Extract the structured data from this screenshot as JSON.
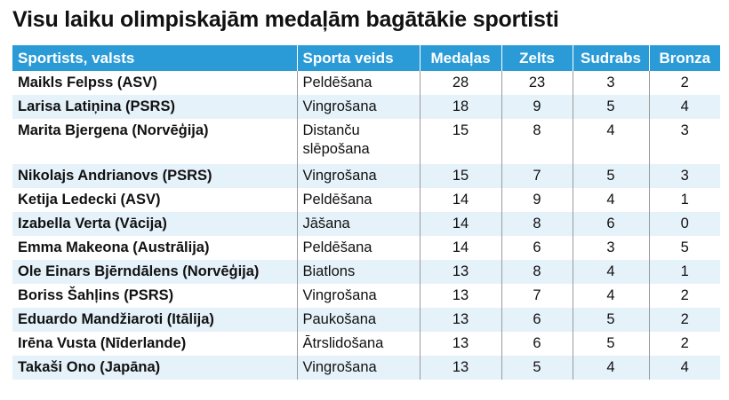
{
  "title": "Visu laiku olimpiskajām medaļām bagātākie sportisti",
  "colors": {
    "header_bg": "#2b9bd8",
    "header_text": "#ffffff",
    "alt_row": "#e6f2fa"
  },
  "chart_data": {
    "type": "table",
    "title": "Visu laiku olimpiskajām medaļām bagātākie sportisti",
    "columns": [
      "Sportists, valsts",
      "Sporta veids",
      "Medaļas",
      "Zelts",
      "Sudrabs",
      "Bronza"
    ],
    "rows": [
      [
        "Maikls Felpss (ASV)",
        "Peldēšana",
        28,
        23,
        3,
        2
      ],
      [
        "Larisa Latiņina (PSRS)",
        "Vingrošana",
        18,
        9,
        5,
        4
      ],
      [
        "Marita Bjergena (Norvēģija)",
        "Distanču slēpošana",
        15,
        8,
        4,
        3
      ],
      [
        "Nikolajs Andrianovs (PSRS)",
        "Vingrošana",
        15,
        7,
        5,
        3
      ],
      [
        "Ketija Ledecki (ASV)",
        "Peldēšana",
        14,
        9,
        4,
        1
      ],
      [
        "Izabella Verta (Vācija)",
        "Jāšana",
        14,
        8,
        6,
        0
      ],
      [
        "Emma Makeona (Austrālija)",
        "Peldēšana",
        14,
        6,
        3,
        5
      ],
      [
        "Ole Einars Bjērndālens (Norvēģija)",
        "Biatlons",
        13,
        8,
        4,
        1
      ],
      [
        "Boriss Šahļins (PSRS)",
        "Vingrošana",
        13,
        7,
        4,
        2
      ],
      [
        "Eduardo Mandžiaroti (Itālija)",
        "Paukošana",
        13,
        6,
        5,
        2
      ],
      [
        "Irēna Vusta (Nīderlande)",
        "Ātrslidošana",
        13,
        6,
        5,
        2
      ],
      [
        "Takaši Ono (Japāna)",
        "Vingrošana",
        13,
        5,
        4,
        4
      ]
    ]
  }
}
